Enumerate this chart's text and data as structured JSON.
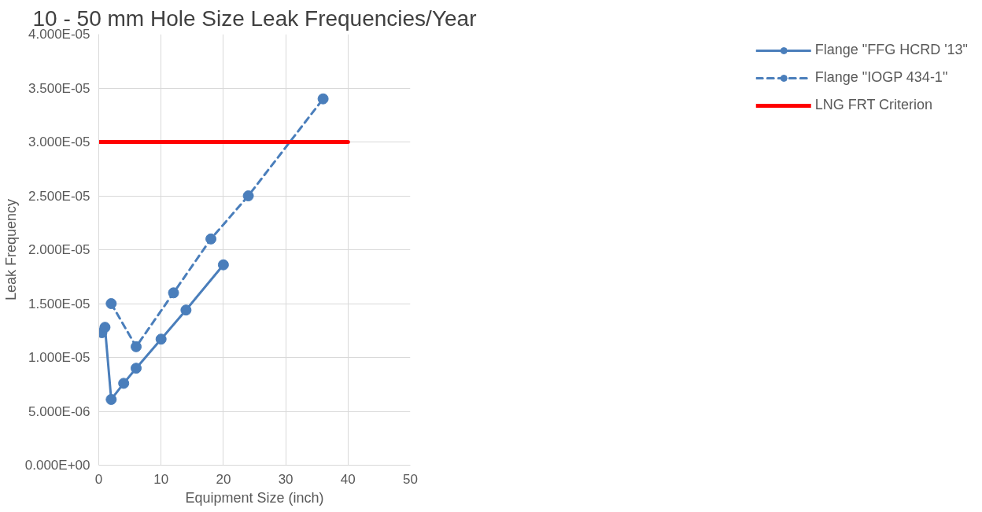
{
  "chart_data": {
    "type": "line",
    "title": "10 - 50 mm Hole Size Leak Frequencies/Year",
    "xlabel": "Equipment Size (inch)",
    "ylabel": "Leak Frequency",
    "xlim": [
      0,
      50
    ],
    "xticks": [
      0,
      10,
      20,
      30,
      40,
      50
    ],
    "ylim": [
      0,
      4e-05
    ],
    "yticks": [
      {
        "value": 0,
        "label": "0.000E+00"
      },
      {
        "value": 5e-06,
        "label": "5.000E-06"
      },
      {
        "value": 1e-05,
        "label": "1.000E-05"
      },
      {
        "value": 1.5e-05,
        "label": "1.500E-05"
      },
      {
        "value": 2e-05,
        "label": "2.000E-05"
      },
      {
        "value": 2.5e-05,
        "label": "2.500E-05"
      },
      {
        "value": 3e-05,
        "label": "3.000E-05"
      },
      {
        "value": 3.5e-05,
        "label": "3.500E-05"
      },
      {
        "value": 4e-05,
        "label": "4.000E-05"
      }
    ],
    "grid": true,
    "legend": "right",
    "series": [
      {
        "name": "Flange \"FFG HCRD '13\"",
        "color": "#4a7ebb",
        "marker": "circle",
        "line_style": "solid",
        "x": [
          0.5,
          1,
          2,
          4,
          6,
          10,
          14,
          20
        ],
        "values": [
          1.23e-05,
          1.28e-05,
          6.1e-06,
          7.6e-06,
          9e-06,
          1.17e-05,
          1.44e-05,
          1.86e-05
        ]
      },
      {
        "name": "Flange \"IOGP 434-1\"",
        "color": "#4a7ebb",
        "marker": "circle",
        "line_style": "dashed",
        "x": [
          2,
          6,
          12,
          18,
          24,
          36
        ],
        "values": [
          1.5e-05,
          1.1e-05,
          1.6e-05,
          2.1e-05,
          2.5e-05,
          3.4e-05
        ]
      },
      {
        "name": "LNG FRT Criterion",
        "color": "#ff0000",
        "marker": "none",
        "line_style": "solid",
        "x": [
          0,
          40
        ],
        "values": [
          3e-05,
          3e-05
        ]
      }
    ]
  }
}
